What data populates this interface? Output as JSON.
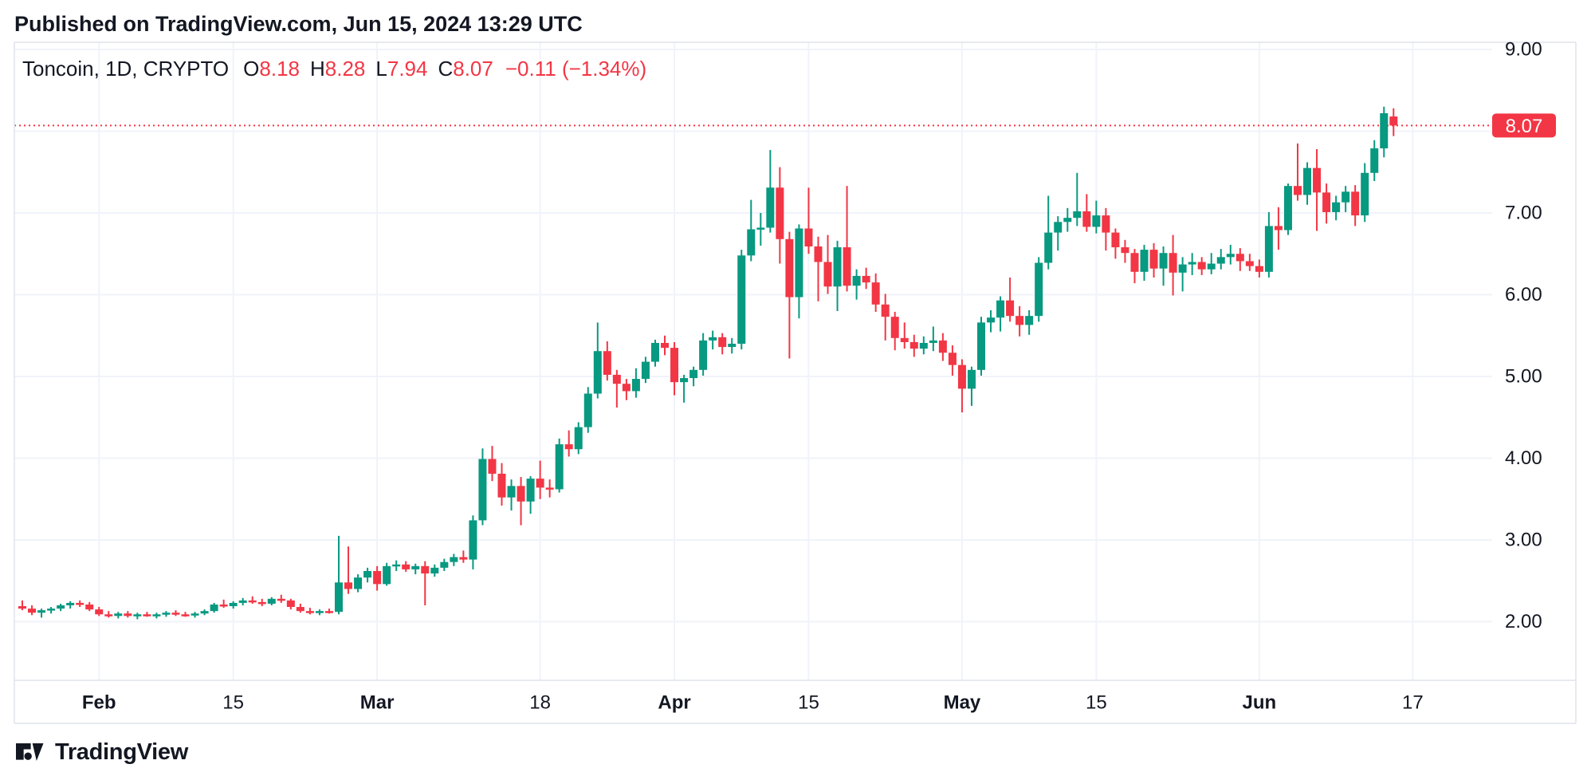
{
  "header": {
    "published_line": "Published on TradingView.com, Jun 15, 2024 13:29 UTC"
  },
  "legend": {
    "symbol_text": "Toncoin, 1D, CRYPTO",
    "o_label": "O",
    "o_value": "8.18",
    "h_label": "H",
    "h_value": "8.28",
    "l_label": "L",
    "l_value": "7.94",
    "c_label": "C",
    "c_value": "8.07",
    "change_text": "−0.11 (−1.34%)"
  },
  "footer": {
    "brand": "TradingView"
  },
  "colors": {
    "background": "#FFFFFF",
    "up": "#089981",
    "down": "#F23645",
    "text": "#131722",
    "grid": "#F0F3FA",
    "axis_border": "#E0E3EB",
    "price_line": "#F23645",
    "label_bg": "#F23645",
    "label_text": "#FFFFFF"
  },
  "chart_data": {
    "type": "candlestick",
    "title": "Toncoin, 1D, CRYPTO",
    "symbol": "Toncoin",
    "interval": "1D",
    "exchange": "CRYPTO",
    "last_price": 8.07,
    "ohlc_display": {
      "open": 8.18,
      "high": 8.28,
      "low": 7.94,
      "close": 8.07,
      "change": -0.11,
      "change_pct": -1.34
    },
    "price_axis": {
      "tick_labels": [
        "9.00",
        "7.00",
        "6.00",
        "5.00",
        "4.00",
        "3.00",
        "2.00"
      ],
      "grid_levels": [
        9,
        8,
        7,
        6,
        5,
        4,
        3,
        2
      ],
      "last_price_label": "8.07",
      "visible_range": [
        1.3,
        9.1
      ]
    },
    "time_axis": {
      "ticks": [
        {
          "label": "Feb",
          "bold": true,
          "day_index": 8
        },
        {
          "label": "15",
          "bold": false,
          "day_index": 22
        },
        {
          "label": "Mar",
          "bold": true,
          "day_index": 37
        },
        {
          "label": "18",
          "bold": false,
          "day_index": 54
        },
        {
          "label": "Apr",
          "bold": true,
          "day_index": 68
        },
        {
          "label": "15",
          "bold": false,
          "day_index": 82
        },
        {
          "label": "May",
          "bold": true,
          "day_index": 98
        },
        {
          "label": "15",
          "bold": false,
          "day_index": 112
        },
        {
          "label": "Jun",
          "bold": true,
          "day_index": 129
        },
        {
          "label": "17",
          "bold": false,
          "day_index": 145
        }
      ]
    },
    "candles": [
      [
        "2024-01-24",
        2.19,
        2.26,
        2.14,
        2.16
      ],
      [
        "2024-01-25",
        2.16,
        2.2,
        2.08,
        2.11
      ],
      [
        "2024-01-26",
        2.11,
        2.16,
        2.05,
        2.14
      ],
      [
        "2024-01-27",
        2.14,
        2.18,
        2.1,
        2.16
      ],
      [
        "2024-01-28",
        2.16,
        2.22,
        2.13,
        2.2
      ],
      [
        "2024-01-29",
        2.2,
        2.25,
        2.16,
        2.23
      ],
      [
        "2024-01-30",
        2.23,
        2.26,
        2.18,
        2.21
      ],
      [
        "2024-01-31",
        2.21,
        2.24,
        2.13,
        2.15
      ],
      [
        "2024-02-01",
        2.15,
        2.18,
        2.07,
        2.09
      ],
      [
        "2024-02-02",
        2.09,
        2.13,
        2.05,
        2.07
      ],
      [
        "2024-02-03",
        2.07,
        2.12,
        2.04,
        2.1
      ],
      [
        "2024-02-04",
        2.1,
        2.13,
        2.05,
        2.07
      ],
      [
        "2024-02-05",
        2.07,
        2.11,
        2.03,
        2.09
      ],
      [
        "2024-02-06",
        2.09,
        2.12,
        2.06,
        2.07
      ],
      [
        "2024-02-07",
        2.07,
        2.11,
        2.04,
        2.09
      ],
      [
        "2024-02-08",
        2.09,
        2.13,
        2.06,
        2.11
      ],
      [
        "2024-02-09",
        2.11,
        2.14,
        2.07,
        2.09
      ],
      [
        "2024-02-10",
        2.09,
        2.12,
        2.06,
        2.08
      ],
      [
        "2024-02-11",
        2.08,
        2.12,
        2.05,
        2.1
      ],
      [
        "2024-02-12",
        2.1,
        2.15,
        2.08,
        2.13
      ],
      [
        "2024-02-13",
        2.13,
        2.23,
        2.11,
        2.21
      ],
      [
        "2024-02-14",
        2.21,
        2.27,
        2.17,
        2.19
      ],
      [
        "2024-02-15",
        2.19,
        2.25,
        2.16,
        2.23
      ],
      [
        "2024-02-16",
        2.23,
        2.29,
        2.2,
        2.26
      ],
      [
        "2024-02-17",
        2.26,
        2.31,
        2.22,
        2.24
      ],
      [
        "2024-02-18",
        2.24,
        2.28,
        2.19,
        2.22
      ],
      [
        "2024-02-19",
        2.22,
        2.3,
        2.2,
        2.28
      ],
      [
        "2024-02-20",
        2.28,
        2.33,
        2.23,
        2.26
      ],
      [
        "2024-02-21",
        2.26,
        2.28,
        2.15,
        2.18
      ],
      [
        "2024-02-22",
        2.18,
        2.22,
        2.11,
        2.13
      ],
      [
        "2024-02-23",
        2.13,
        2.17,
        2.09,
        2.11
      ],
      [
        "2024-02-24",
        2.11,
        2.15,
        2.08,
        2.13
      ],
      [
        "2024-02-25",
        2.13,
        2.16,
        2.1,
        2.12
      ],
      [
        "2024-02-26",
        2.12,
        3.05,
        2.09,
        2.48
      ],
      [
        "2024-02-27",
        2.48,
        2.92,
        2.34,
        2.4
      ],
      [
        "2024-02-28",
        2.4,
        2.58,
        2.36,
        2.54
      ],
      [
        "2024-02-29",
        2.54,
        2.66,
        2.48,
        2.62
      ],
      [
        "2024-03-01",
        2.62,
        2.68,
        2.38,
        2.46
      ],
      [
        "2024-03-02",
        2.46,
        2.72,
        2.44,
        2.68
      ],
      [
        "2024-03-03",
        2.68,
        2.75,
        2.62,
        2.7
      ],
      [
        "2024-03-04",
        2.7,
        2.74,
        2.61,
        2.64
      ],
      [
        "2024-03-05",
        2.64,
        2.71,
        2.58,
        2.68
      ],
      [
        "2024-03-06",
        2.68,
        2.74,
        2.2,
        2.59
      ],
      [
        "2024-03-07",
        2.59,
        2.7,
        2.55,
        2.66
      ],
      [
        "2024-03-08",
        2.66,
        2.77,
        2.62,
        2.73
      ],
      [
        "2024-03-09",
        2.73,
        2.83,
        2.68,
        2.79
      ],
      [
        "2024-03-10",
        2.79,
        2.87,
        2.72,
        2.76
      ],
      [
        "2024-03-11",
        2.76,
        3.3,
        2.64,
        3.24
      ],
      [
        "2024-03-12",
        3.24,
        4.12,
        3.18,
        3.99
      ],
      [
        "2024-03-13",
        3.99,
        4.15,
        3.72,
        3.81
      ],
      [
        "2024-03-14",
        3.81,
        3.94,
        3.42,
        3.52
      ],
      [
        "2024-03-15",
        3.52,
        3.74,
        3.36,
        3.66
      ],
      [
        "2024-03-16",
        3.66,
        3.77,
        3.18,
        3.47
      ],
      [
        "2024-03-17",
        3.47,
        3.78,
        3.32,
        3.75
      ],
      [
        "2024-03-18",
        3.75,
        3.97,
        3.5,
        3.64
      ],
      [
        "2024-03-19",
        3.64,
        3.74,
        3.52,
        3.62
      ],
      [
        "2024-03-20",
        3.62,
        4.24,
        3.58,
        4.17
      ],
      [
        "2024-03-21",
        4.17,
        4.34,
        4.02,
        4.11
      ],
      [
        "2024-03-22",
        4.11,
        4.44,
        4.05,
        4.38
      ],
      [
        "2024-03-23",
        4.38,
        4.87,
        4.31,
        4.79
      ],
      [
        "2024-03-24",
        4.79,
        5.66,
        4.73,
        5.31
      ],
      [
        "2024-03-25",
        5.31,
        5.43,
        4.95,
        5.02
      ],
      [
        "2024-03-26",
        5.02,
        5.08,
        4.62,
        4.91
      ],
      [
        "2024-03-27",
        4.91,
        4.97,
        4.71,
        4.82
      ],
      [
        "2024-03-28",
        4.82,
        5.1,
        4.74,
        4.97
      ],
      [
        "2024-03-29",
        4.97,
        5.24,
        4.92,
        5.18
      ],
      [
        "2024-03-30",
        5.18,
        5.45,
        5.12,
        5.41
      ],
      [
        "2024-03-31",
        5.41,
        5.5,
        5.26,
        5.35
      ],
      [
        "2024-04-01",
        5.35,
        5.42,
        4.77,
        4.93
      ],
      [
        "2024-04-02",
        4.93,
        5.02,
        4.68,
        4.98
      ],
      [
        "2024-04-03",
        4.98,
        5.12,
        4.88,
        5.08
      ],
      [
        "2024-04-04",
        5.08,
        5.53,
        5.01,
        5.44
      ],
      [
        "2024-04-05",
        5.44,
        5.56,
        5.33,
        5.48
      ],
      [
        "2024-04-06",
        5.48,
        5.53,
        5.27,
        5.36
      ],
      [
        "2024-04-07",
        5.36,
        5.47,
        5.28,
        5.4
      ],
      [
        "2024-04-08",
        5.4,
        6.55,
        5.33,
        6.48
      ],
      [
        "2024-04-09",
        6.48,
        7.16,
        6.41,
        6.8
      ],
      [
        "2024-04-10",
        6.8,
        7.0,
        6.6,
        6.82
      ],
      [
        "2024-04-11",
        6.82,
        7.77,
        6.76,
        7.31
      ],
      [
        "2024-04-12",
        7.31,
        7.56,
        6.38,
        6.68
      ],
      [
        "2024-04-13",
        6.68,
        6.77,
        5.22,
        5.97
      ],
      [
        "2024-04-14",
        5.97,
        6.86,
        5.71,
        6.81
      ],
      [
        "2024-04-15",
        6.81,
        7.31,
        6.5,
        6.59
      ],
      [
        "2024-04-16",
        6.59,
        6.71,
        5.92,
        6.4
      ],
      [
        "2024-04-17",
        6.4,
        6.73,
        6.01,
        6.1
      ],
      [
        "2024-04-18",
        6.1,
        6.66,
        5.8,
        6.58
      ],
      [
        "2024-04-19",
        6.58,
        7.33,
        6.04,
        6.11
      ],
      [
        "2024-04-20",
        6.11,
        6.31,
        5.94,
        6.23
      ],
      [
        "2024-04-21",
        6.23,
        6.33,
        6.07,
        6.15
      ],
      [
        "2024-04-22",
        6.15,
        6.26,
        5.79,
        5.88
      ],
      [
        "2024-04-23",
        5.88,
        6.01,
        5.44,
        5.73
      ],
      [
        "2024-04-24",
        5.73,
        5.79,
        5.32,
        5.47
      ],
      [
        "2024-04-25",
        5.47,
        5.66,
        5.34,
        5.42
      ],
      [
        "2024-04-26",
        5.42,
        5.51,
        5.24,
        5.34
      ],
      [
        "2024-04-27",
        5.34,
        5.49,
        5.27,
        5.41
      ],
      [
        "2024-04-28",
        5.41,
        5.61,
        5.31,
        5.44
      ],
      [
        "2024-04-29",
        5.44,
        5.53,
        5.19,
        5.29
      ],
      [
        "2024-04-30",
        5.29,
        5.38,
        5.01,
        5.14
      ],
      [
        "2024-05-01",
        5.14,
        5.21,
        4.56,
        4.85
      ],
      [
        "2024-05-02",
        4.85,
        5.12,
        4.64,
        5.08
      ],
      [
        "2024-05-03",
        5.08,
        5.73,
        5.01,
        5.66
      ],
      [
        "2024-05-04",
        5.66,
        5.81,
        5.54,
        5.72
      ],
      [
        "2024-05-05",
        5.72,
        5.98,
        5.55,
        5.93
      ],
      [
        "2024-05-06",
        5.93,
        6.21,
        5.67,
        5.74
      ],
      [
        "2024-05-07",
        5.74,
        5.86,
        5.49,
        5.63
      ],
      [
        "2024-05-08",
        5.63,
        5.81,
        5.51,
        5.74
      ],
      [
        "2024-05-09",
        5.74,
        6.46,
        5.67,
        6.39
      ],
      [
        "2024-05-10",
        6.39,
        7.21,
        6.31,
        6.76
      ],
      [
        "2024-05-11",
        6.76,
        6.96,
        6.54,
        6.89
      ],
      [
        "2024-05-12",
        6.89,
        7.06,
        6.77,
        6.94
      ],
      [
        "2024-05-13",
        6.94,
        7.49,
        6.84,
        7.02
      ],
      [
        "2024-05-14",
        7.02,
        7.23,
        6.77,
        6.83
      ],
      [
        "2024-05-15",
        6.83,
        7.15,
        6.75,
        6.97
      ],
      [
        "2024-05-16",
        6.97,
        7.06,
        6.54,
        6.76
      ],
      [
        "2024-05-17",
        6.76,
        6.81,
        6.44,
        6.58
      ],
      [
        "2024-05-18",
        6.58,
        6.67,
        6.39,
        6.51
      ],
      [
        "2024-05-19",
        6.51,
        6.56,
        6.14,
        6.28
      ],
      [
        "2024-05-20",
        6.28,
        6.61,
        6.17,
        6.55
      ],
      [
        "2024-05-21",
        6.55,
        6.63,
        6.21,
        6.32
      ],
      [
        "2024-05-22",
        6.32,
        6.59,
        6.11,
        6.51
      ],
      [
        "2024-05-23",
        6.51,
        6.73,
        5.99,
        6.27
      ],
      [
        "2024-05-24",
        6.27,
        6.46,
        6.04,
        6.37
      ],
      [
        "2024-05-25",
        6.37,
        6.51,
        6.24,
        6.4
      ],
      [
        "2024-05-26",
        6.4,
        6.46,
        6.24,
        6.31
      ],
      [
        "2024-05-27",
        6.31,
        6.51,
        6.25,
        6.38
      ],
      [
        "2024-05-28",
        6.38,
        6.56,
        6.31,
        6.46
      ],
      [
        "2024-05-29",
        6.46,
        6.61,
        6.37,
        6.5
      ],
      [
        "2024-05-30",
        6.5,
        6.57,
        6.29,
        6.41
      ],
      [
        "2024-05-31",
        6.41,
        6.5,
        6.29,
        6.35
      ],
      [
        "2024-06-01",
        6.35,
        6.43,
        6.21,
        6.28
      ],
      [
        "2024-06-02",
        6.28,
        7.01,
        6.21,
        6.84
      ],
      [
        "2024-06-03",
        6.84,
        7.07,
        6.55,
        6.79
      ],
      [
        "2024-06-04",
        6.79,
        7.36,
        6.73,
        7.33
      ],
      [
        "2024-06-05",
        7.33,
        7.85,
        7.15,
        7.22
      ],
      [
        "2024-06-06",
        7.22,
        7.62,
        7.1,
        7.55
      ],
      [
        "2024-06-07",
        7.55,
        7.78,
        6.78,
        7.25
      ],
      [
        "2024-06-08",
        7.25,
        7.36,
        6.87,
        7.01
      ],
      [
        "2024-06-09",
        7.01,
        7.21,
        6.91,
        7.13
      ],
      [
        "2024-06-10",
        7.13,
        7.33,
        7.01,
        7.26
      ],
      [
        "2024-06-11",
        7.26,
        7.34,
        6.84,
        6.97
      ],
      [
        "2024-06-12",
        6.97,
        7.61,
        6.89,
        7.49
      ],
      [
        "2024-06-13",
        7.49,
        7.89,
        7.39,
        7.79
      ],
      [
        "2024-06-14",
        7.79,
        8.3,
        7.68,
        8.22
      ],
      [
        "2024-06-15",
        8.18,
        8.28,
        7.94,
        8.07
      ]
    ]
  }
}
